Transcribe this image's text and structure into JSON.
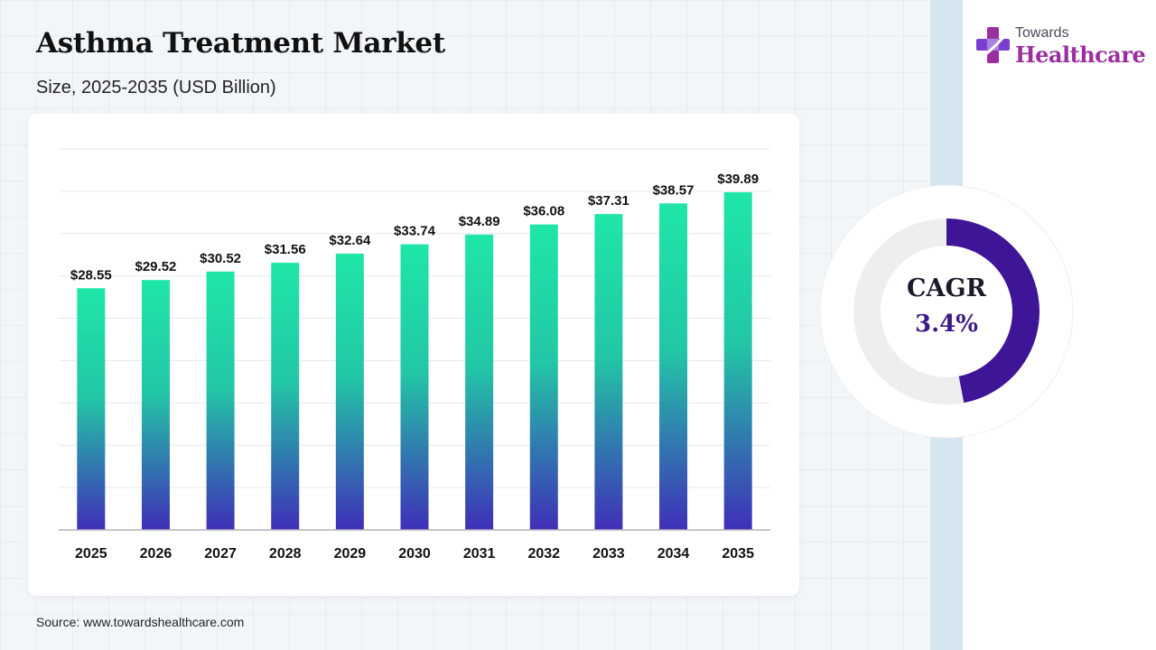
{
  "header": {
    "title": "Asthma Treatment Market",
    "subtitle": "Size, 2025-2035 (USD Billion)"
  },
  "logo": {
    "small_text": "Towards",
    "big_text": "Healthcare"
  },
  "cagr": {
    "label": "CAGR",
    "value": "3.4%",
    "ring_fill_fraction": 0.47,
    "ring_color": "#3e1596",
    "track_color": "#eeeeee"
  },
  "footer": {
    "source": "Source: www.towardshealthcare.com"
  },
  "colors": {
    "bar_top": "#1fe6a8",
    "bar_bottom": "#3f2fb8",
    "grid": "#e6e9ee",
    "axis": "#b0b4bb"
  },
  "chart_data": {
    "type": "bar",
    "title": "Asthma Treatment Market",
    "subtitle": "Size, 2025-2035 (USD Billion)",
    "xlabel": "",
    "ylabel": "",
    "categories": [
      "2025",
      "2026",
      "2027",
      "2028",
      "2029",
      "2030",
      "2031",
      "2032",
      "2033",
      "2034",
      "2035"
    ],
    "values": [
      28.55,
      29.52,
      30.52,
      31.56,
      32.64,
      33.74,
      34.89,
      36.08,
      37.31,
      38.57,
      39.89
    ],
    "value_labels": [
      "$28.55",
      "$29.52",
      "$30.52",
      "$31.56",
      "$32.64",
      "$33.74",
      "$34.89",
      "$36.08",
      "$37.31",
      "$38.57",
      "$39.89"
    ],
    "ylim": [
      0,
      45
    ],
    "grid": true,
    "legend": "none"
  }
}
